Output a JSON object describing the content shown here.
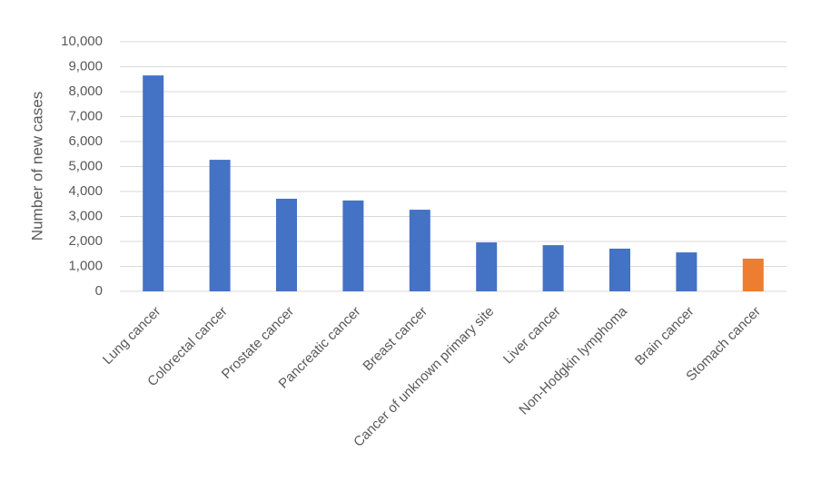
{
  "chart_data": {
    "type": "bar",
    "y_axis_label": "Number of new cases",
    "categories": [
      "Lung cancer",
      "Colorectal cancer",
      "Prostate cancer",
      "Pancreatic cancer",
      "Breast cancer",
      "Cancer of unknown primary site",
      "Liver cancer",
      "Non-Hodgkin lymphoma",
      "Brain cancer",
      "Stomach cancer"
    ],
    "values": [
      8650,
      5270,
      3710,
      3640,
      3270,
      1960,
      1850,
      1710,
      1560,
      1310
    ],
    "colors": [
      "#4472c4",
      "#4472c4",
      "#4472c4",
      "#4472c4",
      "#4472c4",
      "#4472c4",
      "#4472c4",
      "#4472c4",
      "#4472c4",
      "#ed7d31"
    ],
    "ylim": [
      0,
      10000
    ],
    "yticks": [
      0,
      {
        "value": 1000,
        "label": "1,000"
      },
      {
        "value": 2000,
        "label": "2,000"
      },
      {
        "value": 3000,
        "label": "3,000"
      },
      {
        "value": 4000,
        "label": "4,000"
      },
      {
        "value": 5000,
        "label": "5,000"
      },
      {
        "value": 6000,
        "label": "6,000"
      },
      {
        "value": 7000,
        "label": "7,000"
      },
      {
        "value": 8000,
        "label": "8,000"
      },
      {
        "value": 9000,
        "label": "9,000"
      },
      {
        "value": 10000,
        "label": "10,000"
      }
    ],
    "grid": true
  }
}
